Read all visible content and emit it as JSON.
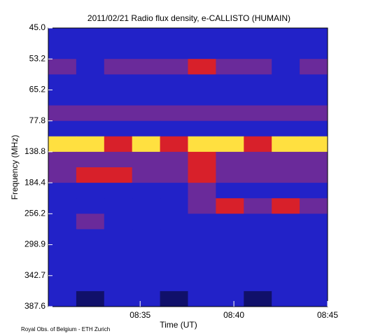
{
  "chart_data": {
    "type": "heatmap",
    "title": "2011/02/21  Radio flux density, e-CALLISTO (HUMAIN)",
    "x_label": "Time (UT)",
    "y_label": "Frequency (MHz)",
    "footer": "Royal Obs. of Belgium - ETH Zurich",
    "xlim": [
      30.1,
      45
    ],
    "xticks": [
      {
        "value": 35,
        "label": "08:35"
      },
      {
        "value": 40,
        "label": "08:40"
      },
      {
        "value": 45,
        "label": "08:45"
      }
    ],
    "ylim": [
      0,
      9
    ],
    "yticks": [
      {
        "value": 0,
        "label": "45.0"
      },
      {
        "value": 1,
        "label": "53.2"
      },
      {
        "value": 2,
        "label": "65.2"
      },
      {
        "value": 3,
        "label": "77.8"
      },
      {
        "value": 4,
        "label": "138.8"
      },
      {
        "value": 5,
        "label": "184.4"
      },
      {
        "value": 6,
        "label": "256.2"
      },
      {
        "value": 7,
        "label": "298.9"
      },
      {
        "value": 8,
        "label": "342.7"
      },
      {
        "value": 9,
        "label": "387.6"
      }
    ],
    "colorscale": [
      "#10106a",
      "#2222c8",
      "#6a2a9a",
      "#d8202a",
      "#ffe040"
    ],
    "z": [
      [
        1,
        1,
        1,
        1,
        1,
        1,
        1,
        1,
        1,
        1
      ],
      [
        1,
        1,
        1,
        1,
        1,
        1,
        1,
        1,
        1,
        1
      ],
      [
        2,
        1,
        2,
        2,
        2,
        3,
        2,
        2,
        1,
        2
      ],
      [
        1,
        1,
        1,
        1,
        1,
        1,
        1,
        1,
        1,
        1
      ],
      [
        1,
        1,
        1,
        1,
        1,
        1,
        1,
        1,
        1,
        1
      ],
      [
        2,
        2,
        2,
        2,
        2,
        2,
        2,
        2,
        2,
        2
      ],
      [
        1,
        1,
        1,
        1,
        1,
        1,
        1,
        1,
        1,
        1
      ],
      [
        4,
        4,
        3,
        4,
        3,
        4,
        4,
        3,
        4,
        4
      ],
      [
        2,
        2,
        2,
        2,
        2,
        3,
        2,
        2,
        2,
        2
      ],
      [
        2,
        3,
        3,
        2,
        2,
        3,
        2,
        2,
        2,
        2
      ],
      [
        1,
        1,
        1,
        1,
        1,
        2,
        1,
        1,
        1,
        1
      ],
      [
        1,
        1,
        1,
        1,
        1,
        2,
        3,
        2,
        3,
        2
      ],
      [
        1,
        2,
        1,
        1,
        1,
        1,
        1,
        1,
        1,
        1
      ],
      [
        1,
        1,
        1,
        1,
        1,
        1,
        1,
        1,
        1,
        1
      ],
      [
        1,
        1,
        1,
        1,
        1,
        1,
        1,
        1,
        1,
        1
      ],
      [
        1,
        1,
        1,
        1,
        1,
        1,
        1,
        1,
        1,
        1
      ],
      [
        1,
        1,
        1,
        1,
        1,
        1,
        1,
        1,
        1,
        1
      ],
      [
        1,
        0,
        1,
        1,
        0,
        1,
        1,
        0,
        1,
        1
      ]
    ]
  }
}
